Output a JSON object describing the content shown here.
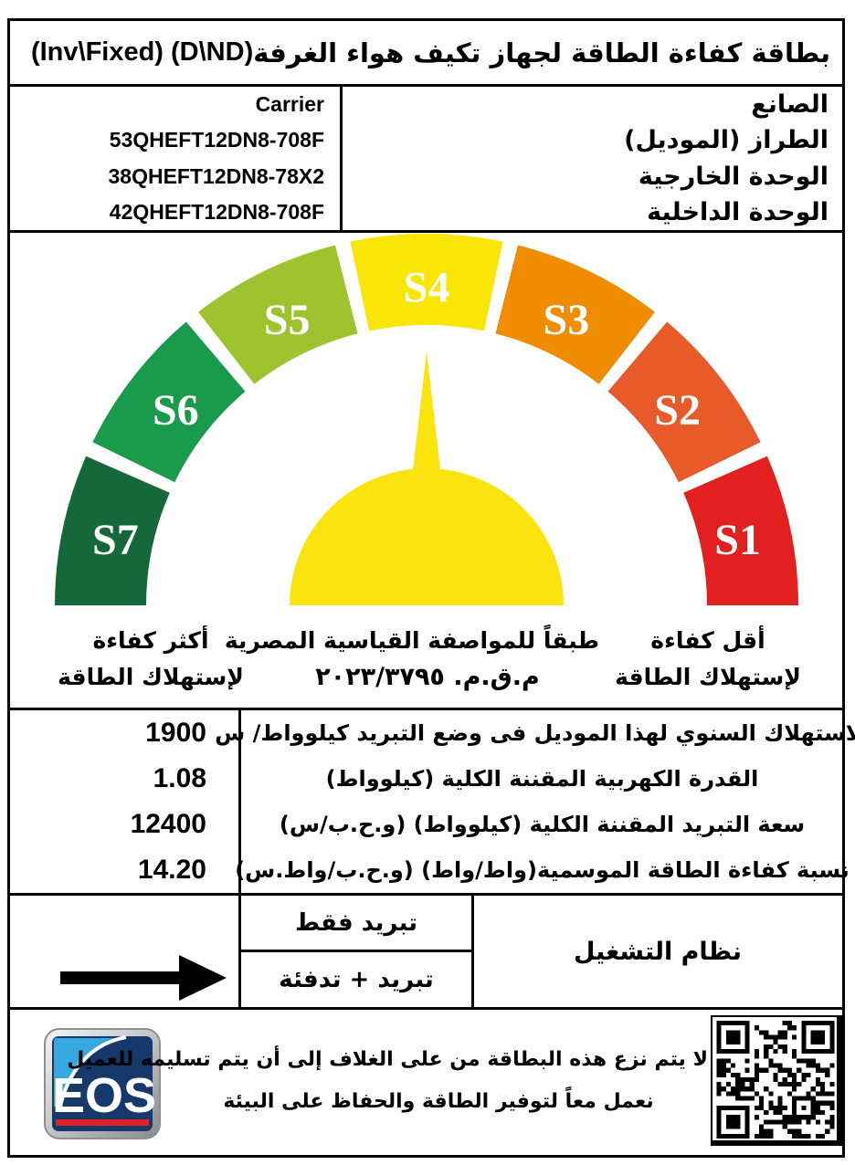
{
  "title": {
    "ar": "بطاقة كفاءة الطاقة لجهاز تكيف هواء الغرفة",
    "en": "(Inv\\Fixed) (D\\ND)"
  },
  "manufacturer_table": {
    "rows": [
      {
        "label": "الصانع",
        "value": "Carrier"
      },
      {
        "label": "الطراز (الموديل)",
        "value": "53QHEFT12DN8-708F"
      },
      {
        "label": "الوحدة الخارجية",
        "value": "38QHEFT12DN8-78X2"
      },
      {
        "label": "الوحدة الداخلية",
        "value": "42QHEFT12DN8-708F"
      }
    ]
  },
  "chart_data": {
    "type": "gauge",
    "description": "semicircular energy-efficiency scale, segments ordered left to right, needle points to S4",
    "segments": [
      {
        "label": "S7",
        "color": "#14683A"
      },
      {
        "label": "S6",
        "color": "#1A9A4B"
      },
      {
        "label": "S5",
        "color": "#9DC42F"
      },
      {
        "label": "S4",
        "color": "#F9E606"
      },
      {
        "label": "S3",
        "color": "#F08C00"
      },
      {
        "label": "S2",
        "color": "#E95A2B"
      },
      {
        "label": "S1",
        "color": "#E2201F"
      }
    ],
    "needle_points_to": "S4",
    "needle_color": "#FBE40D",
    "label_color": "#FFFFFF",
    "left_caption": [
      "أكثر كفاءة",
      "لإستهلاك الطاقة"
    ],
    "center_caption": [
      "طبقاً للمواصفة القياسية المصرية",
      "م.ق.م. ٢٠٢٣/٣٧٩٥"
    ],
    "right_caption": [
      "أقل كفاءة",
      "لإستهلاك الطاقة"
    ]
  },
  "specs": {
    "rows": [
      {
        "label": "الاستهلاك السنوي لهذا الموديل  فى وضع التبريد كيلوواط/ س",
        "value": "1900"
      },
      {
        "label": "القدرة الكهربية المقننة الكلية (كيلوواط)",
        "value": "1.08"
      },
      {
        "label": "سعة التبريد المقننة الكلية (كيلوواط) (و.ح.ب/س)",
        "value": "12400"
      },
      {
        "label": "نسبة كفاءة الطاقة الموسمية(واط/واط) (و.ح.ب/واط.س)",
        "value": "14.20"
      }
    ]
  },
  "operation": {
    "header": "نظام التشغيل",
    "options": [
      {
        "label": "تبريد فقط",
        "selected": false
      },
      {
        "label": "تبريد + تدفئة",
        "selected": true
      }
    ]
  },
  "footer": {
    "line1": "لا يتم نزع هذه البطاقة من على الغلاف إلى أن يتم تسليمه للعميل",
    "line2": "نعمل معاً لتوفير الطاقة والحفاظ على البيئة",
    "logo_text": "EOS",
    "logo_colors": {
      "navy": "#16386B",
      "light_blue": "#35A8E0",
      "red": "#E32227"
    }
  }
}
